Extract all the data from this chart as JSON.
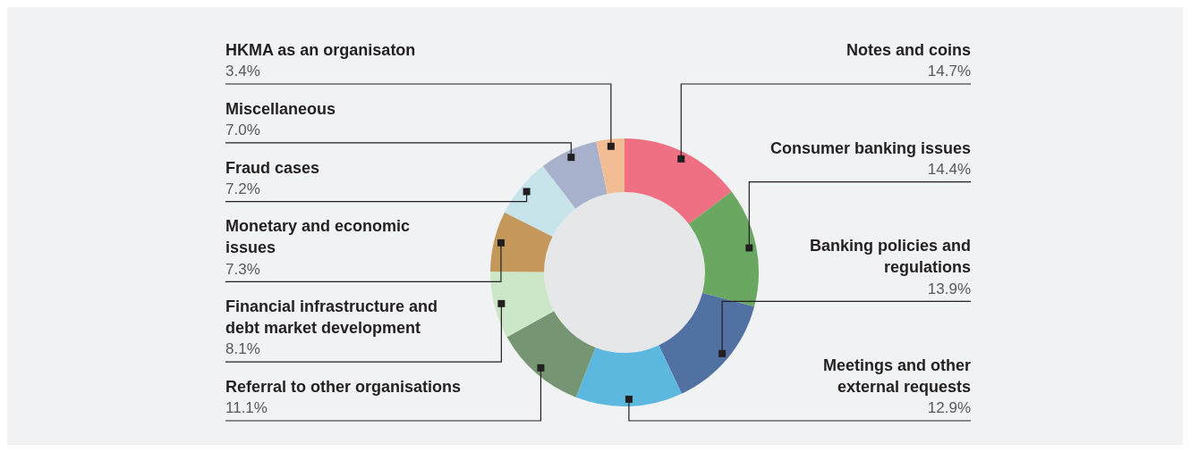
{
  "chart_data": {
    "type": "donut",
    "categories": [
      "Notes and coins",
      "Consumer banking issues",
      "Banking policies and regulations",
      "Meetings and other external requests",
      "Referral to other organisations",
      "Financial infrastructure and debt market development",
      "Monetary and economic issues",
      "Fraud cases",
      "Miscellaneous",
      "HKMA as an organisaton"
    ],
    "values": [
      14.7,
      14.4,
      13.9,
      12.9,
      11.1,
      8.1,
      7.3,
      7.2,
      7.0,
      3.4
    ],
    "value_labels": [
      "14.7%",
      "14.4%",
      "13.9%",
      "12.9%",
      "11.1%",
      "8.1%",
      "7.3%",
      "7.2%",
      "7.0%",
      "3.4%"
    ],
    "colors": [
      "#f07083",
      "#6aa862",
      "#5271a3",
      "#5db8e0",
      "#769673",
      "#cce6c8",
      "#c4985a",
      "#c6e4ea",
      "#a8b1cb",
      "#f2bd94"
    ]
  }
}
